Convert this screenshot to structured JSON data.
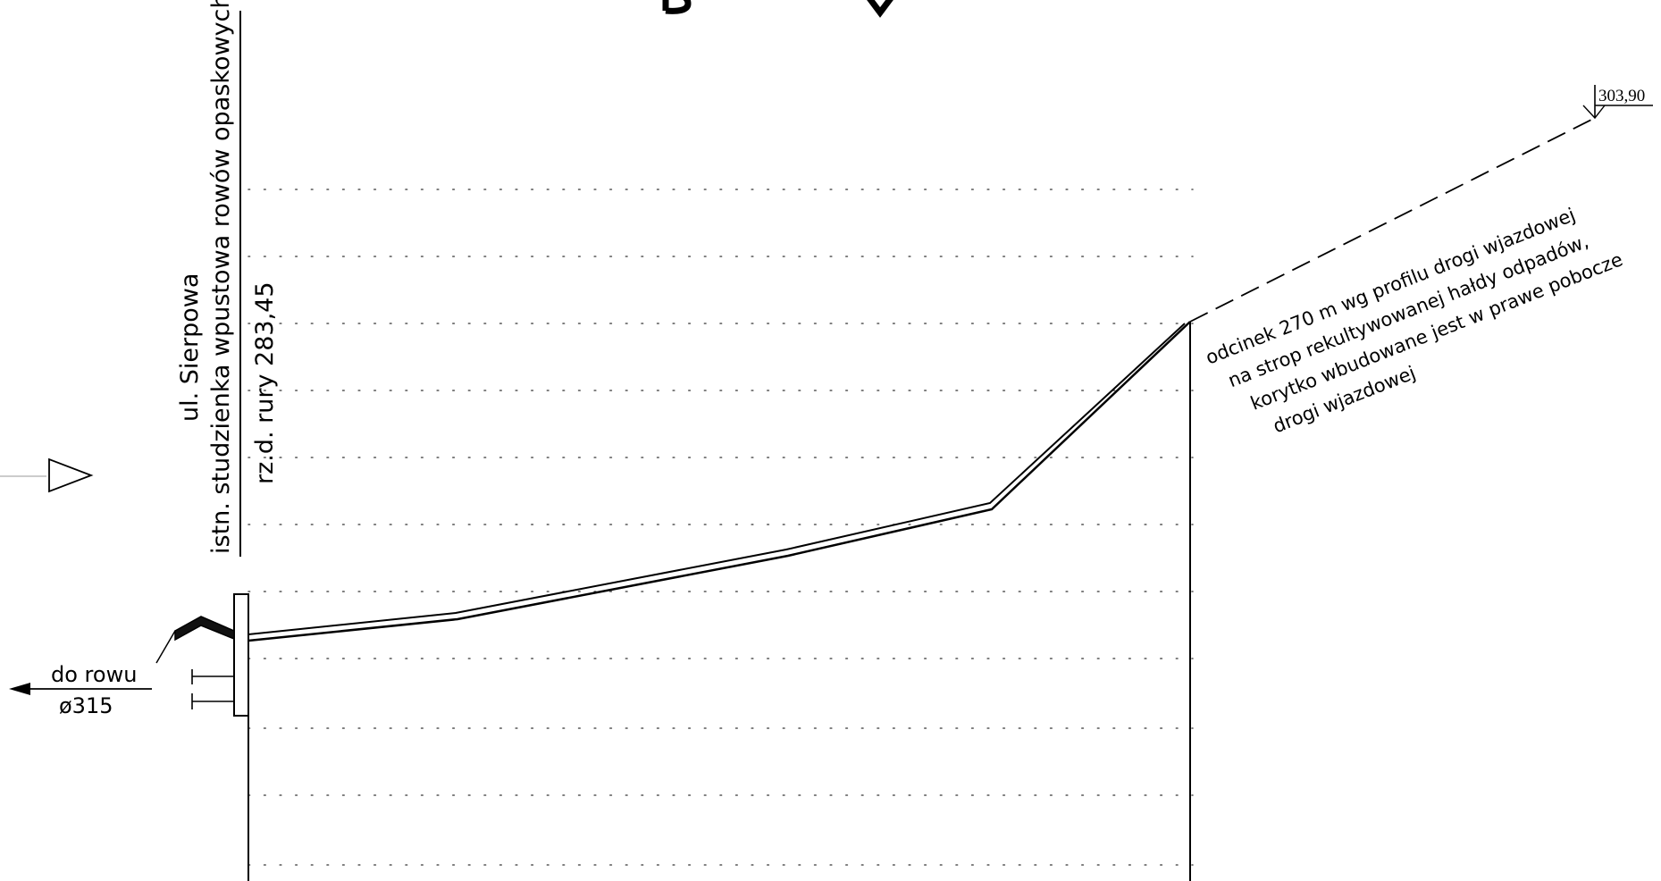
{
  "street_label": "ul. Sierpowa",
  "inlet_label": "istn. studzienka wpustowa rowów opaskowych",
  "pipe_elevation_label": "rz.d. rury 283,45",
  "drain_label_top": "do rowu",
  "drain_label_bottom": "ø315",
  "elevation_top": "303,90",
  "note_lines": [
    "odcinek 270 m wg profilu drogi wjazdowej",
    "na strop rekultywowanej hałdy odpadów,",
    "korytko wbudowane jest w prawe pobocze",
    "drogi wjazdowej"
  ],
  "colors": {
    "ink": "#000000",
    "grid": "#555555",
    "background": "#ffffff"
  }
}
